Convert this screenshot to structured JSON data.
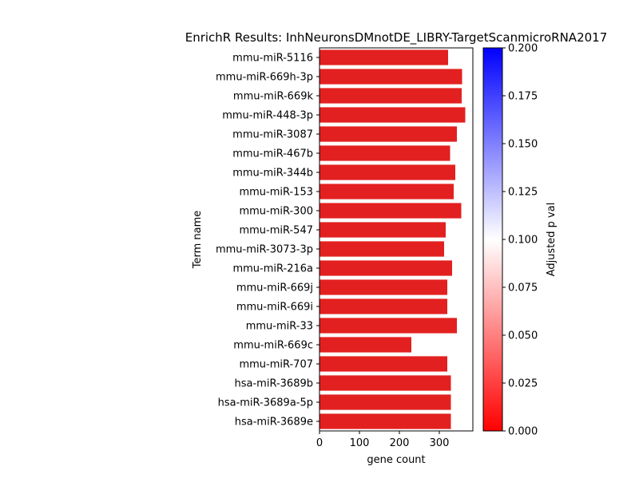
{
  "chart_data": {
    "type": "bar",
    "orientation": "horizontal",
    "title": "EnrichR Results: InhNeuronsDMnotDE_LIBRY-TargetScanmicroRNA2017",
    "xlabel": "gene count",
    "ylabel": "Term name",
    "xlim": [
      0,
      384
    ],
    "xticks": [
      0,
      100,
      200,
      300
    ],
    "categories": [
      "mmu-miR-5116",
      "mmu-miR-669h-3p",
      "mmu-miR-669k",
      "mmu-miR-448-3p",
      "mmu-miR-3087",
      "mmu-miR-467b",
      "mmu-miR-344b",
      "mmu-miR-153",
      "mmu-miR-300",
      "mmu-miR-547",
      "mmu-miR-3073-3p",
      "mmu-miR-216a",
      "mmu-miR-669j",
      "mmu-miR-669i",
      "mmu-miR-33",
      "mmu-miR-669c",
      "mmu-miR-707",
      "hsa-miR-3689b",
      "hsa-miR-3689a-5p",
      "hsa-miR-3689e"
    ],
    "values": [
      322,
      357,
      356,
      365,
      344,
      327,
      340,
      336,
      355,
      316,
      312,
      332,
      320,
      320,
      344,
      230,
      320,
      329,
      329,
      329
    ],
    "bar_color": "#e32020",
    "grid": false,
    "colorbar": {
      "label": "Adjusted p val",
      "range": [
        0.0,
        0.2
      ],
      "ticks": [
        "0.000",
        "0.025",
        "0.050",
        "0.075",
        "0.100",
        "0.125",
        "0.150",
        "0.175",
        "0.200"
      ],
      "colormap": [
        "#ff0000",
        "#ffffff",
        "#0000ff"
      ]
    }
  }
}
